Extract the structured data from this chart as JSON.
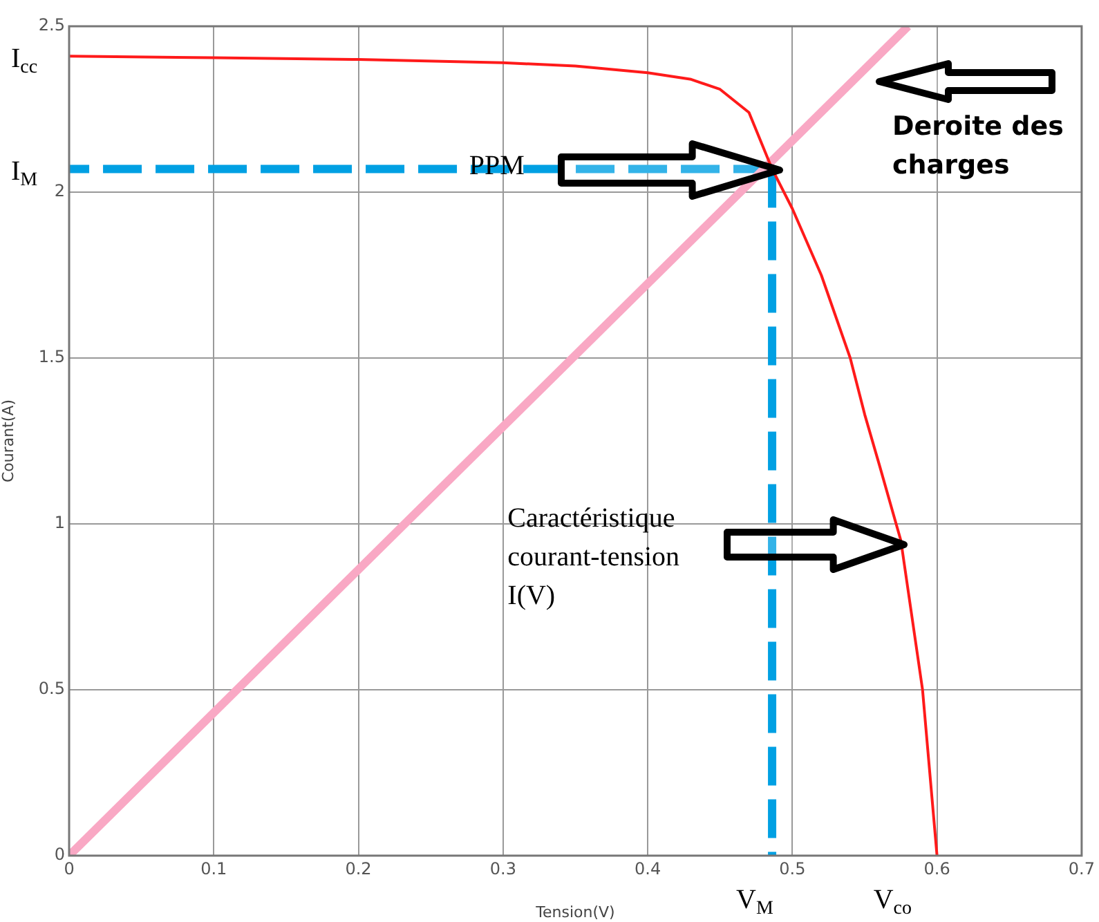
{
  "chart_data": {
    "type": "line",
    "xlabel": "Tension(V)",
    "ylabel": "Courant(A)",
    "xlim": [
      0,
      0.7
    ],
    "xticks": [
      0,
      0.1,
      0.2,
      0.3,
      0.4,
      0.5,
      0.6,
      0.7
    ],
    "ylim": [
      0,
      2.5
    ],
    "yticks": [
      0,
      0.5,
      1,
      1.5,
      2,
      2.5
    ],
    "grid": true,
    "marker": "none",
    "series": [
      {
        "color": "#ff1a1a",
        "x": [
          0,
          0.1,
          0.2,
          0.3,
          0.35,
          0.4,
          0.43,
          0.45,
          0.47,
          0.486,
          0.5,
          0.52,
          0.54,
          0.55,
          0.56,
          0.575,
          0.59,
          0.6
        ],
        "values": [
          2.41,
          2.405,
          2.4,
          2.39,
          2.38,
          2.36,
          2.34,
          2.31,
          2.24,
          2.07,
          1.95,
          1.75,
          1.5,
          1.33,
          1.18,
          0.95,
          0.5,
          0
        ]
      },
      {
        "color": "#f9a8c4",
        "x": [
          0,
          0.58
        ],
        "values": [
          0,
          2.5
        ]
      },
      {
        "color": "#00a0e3",
        "x": [
          0.486,
          0
        ],
        "values": [
          2.07,
          2.07
        ],
        "line_style": "dashed"
      },
      {
        "color": "#00a0e3",
        "x": [
          0.486,
          0.486
        ],
        "values": [
          2.07,
          0
        ],
        "line_style": "dashed"
      }
    ],
    "annotations": [
      {
        "text": "I$_{cc}$",
        "x": 0,
        "y": 2.41
      },
      {
        "text": "I$_{M}$",
        "x": 0,
        "y": 2.07
      },
      "PPM",
      {
        "text": "Deroite des charges",
        "x": 0.55,
        "y": 2.34
      },
      "Caractéristique courant-tension I(V)",
      {
        "text": "V$_{M}$",
        "x": 0.486,
        "y": 0
      },
      {
        "text": "V$_{co}$",
        "x": 0.6,
        "y": 0
      }
    ]
  }
}
